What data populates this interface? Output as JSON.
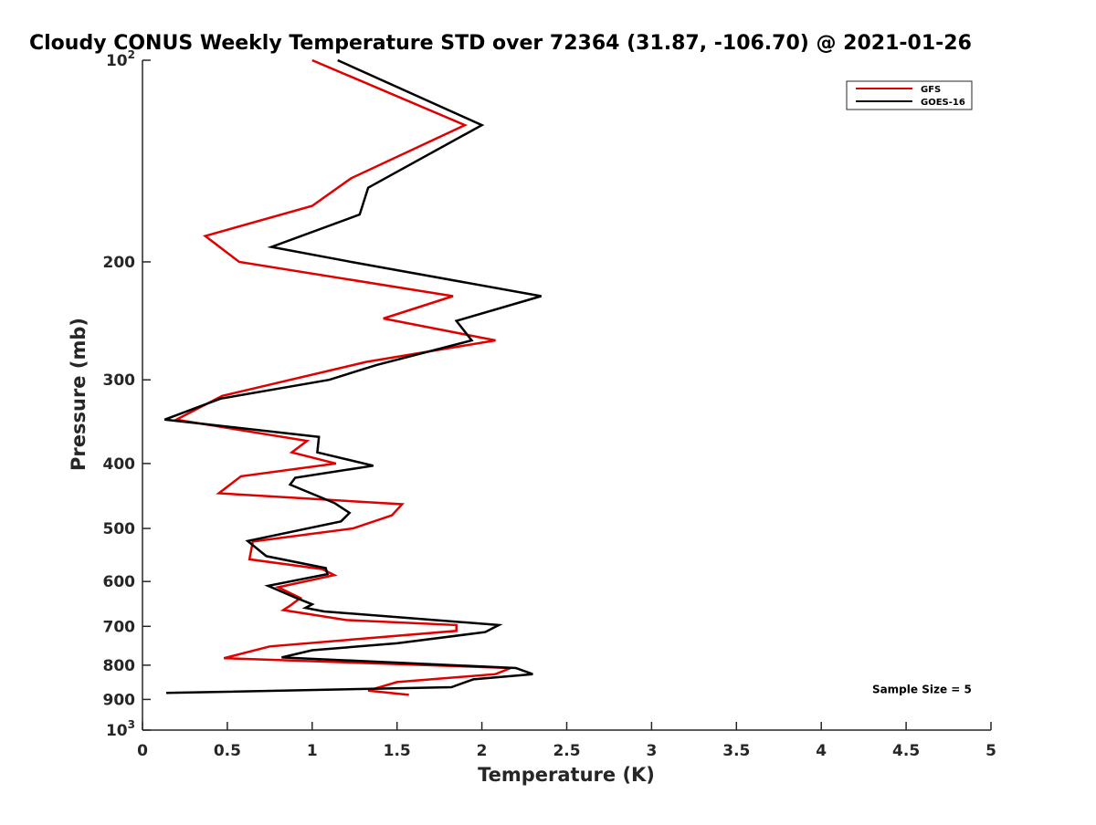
{
  "chart_data": {
    "type": "line",
    "title": "Cloudy CONUS Weekly Temperature STD over 72364 (31.87, -106.70) @ 2021-01-26",
    "xlabel": "Temperature (K)",
    "ylabel": "Pressure (mb)",
    "xlim": [
      0,
      5
    ],
    "ylim": [
      100,
      1000
    ],
    "yscale": "log",
    "y_reversed": true,
    "grid": false,
    "legend_position": "top-right",
    "x_ticks": [
      {
        "value": 0,
        "label": "0"
      },
      {
        "value": 0.5,
        "label": "0.5"
      },
      {
        "value": 1,
        "label": "1"
      },
      {
        "value": 1.5,
        "label": "1.5"
      },
      {
        "value": 2,
        "label": "2"
      },
      {
        "value": 2.5,
        "label": "2.5"
      },
      {
        "value": 3,
        "label": "3"
      },
      {
        "value": 3.5,
        "label": "3.5"
      },
      {
        "value": 4,
        "label": "4"
      },
      {
        "value": 4.5,
        "label": "4.5"
      },
      {
        "value": 5,
        "label": "5"
      }
    ],
    "y_ticks": [
      {
        "value": 100,
        "base": "10",
        "exp": "2"
      },
      {
        "value": 200,
        "label": "200"
      },
      {
        "value": 300,
        "label": "300"
      },
      {
        "value": 400,
        "label": "400"
      },
      {
        "value": 500,
        "label": "500"
      },
      {
        "value": 600,
        "label": "600"
      },
      {
        "value": 700,
        "label": "700"
      },
      {
        "value": 800,
        "label": "800"
      },
      {
        "value": 900,
        "label": "900"
      },
      {
        "value": 1000,
        "base": "10",
        "exp": "3"
      }
    ],
    "series": [
      {
        "name": "GFS",
        "color": "#e00000",
        "points": [
          [
            1.0,
            100
          ],
          [
            1.9,
            125
          ],
          [
            1.23,
            150
          ],
          [
            1.0,
            165
          ],
          [
            0.37,
            183
          ],
          [
            0.57,
            200
          ],
          [
            1.83,
            225
          ],
          [
            1.42,
            243
          ],
          [
            2.08,
            262
          ],
          [
            1.32,
            282
          ],
          [
            0.47,
            317
          ],
          [
            0.2,
            344
          ],
          [
            0.97,
            370
          ],
          [
            0.88,
            385
          ],
          [
            1.14,
            400
          ],
          [
            0.58,
            418
          ],
          [
            0.45,
            443
          ],
          [
            1.53,
            460
          ],
          [
            1.47,
            478
          ],
          [
            1.24,
            500
          ],
          [
            0.65,
            523
          ],
          [
            0.63,
            556
          ],
          [
            1.06,
            575
          ],
          [
            1.13,
            587
          ],
          [
            0.8,
            612
          ],
          [
            0.93,
            635
          ],
          [
            0.87,
            652
          ],
          [
            0.83,
            662
          ],
          [
            1.2,
            685
          ],
          [
            1.85,
            697
          ],
          [
            1.85,
            711
          ],
          [
            0.75,
            750
          ],
          [
            0.48,
            781
          ],
          [
            2.17,
            808
          ],
          [
            2.08,
            825
          ],
          [
            1.5,
            848
          ],
          [
            1.33,
            873
          ],
          [
            1.57,
            886
          ]
        ]
      },
      {
        "name": "GOES-16",
        "color": "#000000",
        "points": [
          [
            1.15,
            100
          ],
          [
            2.0,
            125
          ],
          [
            1.33,
            155
          ],
          [
            1.28,
            170
          ],
          [
            0.76,
            190
          ],
          [
            1.23,
            200
          ],
          [
            2.35,
            225
          ],
          [
            1.85,
            245
          ],
          [
            1.94,
            262
          ],
          [
            1.38,
            285
          ],
          [
            1.1,
            300
          ],
          [
            0.46,
            320
          ],
          [
            0.13,
            344
          ],
          [
            1.04,
            365
          ],
          [
            1.03,
            385
          ],
          [
            1.36,
            403
          ],
          [
            0.9,
            420
          ],
          [
            0.87,
            430
          ],
          [
            1.13,
            458
          ],
          [
            1.22,
            474
          ],
          [
            1.17,
            488
          ],
          [
            0.62,
            522
          ],
          [
            0.73,
            550
          ],
          [
            1.08,
            573
          ],
          [
            1.09,
            585
          ],
          [
            0.74,
            609
          ],
          [
            0.9,
            634
          ],
          [
            1.0,
            649
          ],
          [
            0.96,
            657
          ],
          [
            1.07,
            665
          ],
          [
            2.1,
            697
          ],
          [
            2.02,
            714
          ],
          [
            1.5,
            742
          ],
          [
            1.0,
            760
          ],
          [
            0.82,
            779
          ],
          [
            2.2,
            808
          ],
          [
            2.3,
            825
          ],
          [
            1.95,
            840
          ],
          [
            1.82,
            863
          ],
          [
            0.14,
            880
          ]
        ]
      }
    ],
    "annotations": [
      {
        "text": "Sample Size = 5",
        "x": 4.3,
        "y": 880
      }
    ]
  }
}
